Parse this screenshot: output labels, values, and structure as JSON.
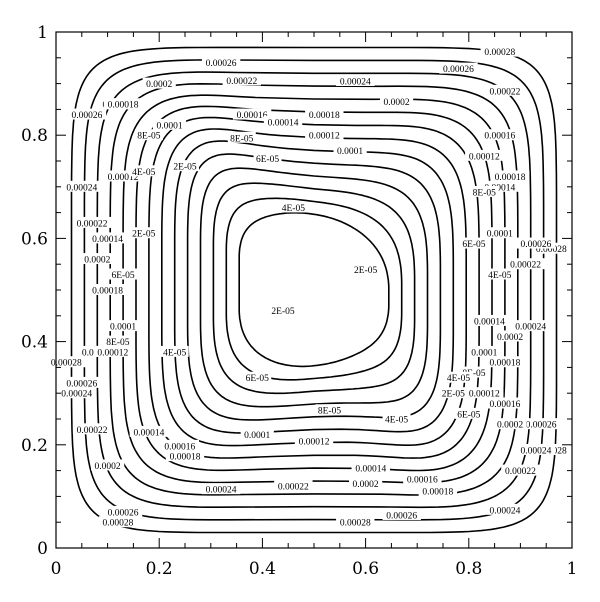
{
  "chart_data": {
    "type": "contour",
    "title": "",
    "xlabel": "",
    "ylabel": "",
    "xlim": [
      0,
      1
    ],
    "ylim": [
      0,
      1
    ],
    "x_ticks": [
      "0",
      "0.2",
      "0.4",
      "0.6",
      "0.8",
      "1"
    ],
    "y_ticks": [
      "0",
      "0.2",
      "0.4",
      "0.6",
      "0.8",
      "1"
    ],
    "x_minor_step": 0.05,
    "y_minor_step": 0.05,
    "grid": false,
    "levels": [
      {
        "value": 0.00028,
        "label": "0.00028",
        "margin": 0.03,
        "label_points": [
          [
            0.86,
            0.962
          ],
          [
            0.12,
            0.86
          ],
          [
            0.02,
            0.36
          ],
          [
            0.12,
            0.05
          ],
          [
            0.58,
            0.05
          ],
          [
            0.96,
            0.58
          ],
          [
            0.96,
            0.19
          ]
        ]
      },
      {
        "value": 0.00026,
        "label": "0.00026",
        "margin": 0.055,
        "label_points": [
          [
            0.32,
            0.941
          ],
          [
            0.78,
            0.929
          ],
          [
            0.06,
            0.84
          ],
          [
            0.05,
            0.32
          ],
          [
            0.13,
            0.07
          ],
          [
            0.67,
            0.064
          ],
          [
            0.93,
            0.59
          ],
          [
            0.94,
            0.24
          ]
        ]
      },
      {
        "value": 0.00024,
        "label": "0.00024",
        "margin": 0.08,
        "label_points": [
          [
            0.58,
            0.905
          ],
          [
            0.05,
            0.7
          ],
          [
            0.04,
            0.3
          ],
          [
            0.32,
            0.114
          ],
          [
            0.87,
            0.074
          ],
          [
            0.92,
            0.43
          ],
          [
            0.93,
            0.19
          ]
        ]
      },
      {
        "value": 0.00022,
        "label": "0.00022",
        "margin": 0.105,
        "label_points": [
          [
            0.36,
            0.906
          ],
          [
            0.87,
            0.886
          ],
          [
            0.07,
            0.63
          ],
          [
            0.07,
            0.23
          ],
          [
            0.46,
            0.12
          ],
          [
            0.91,
            0.55
          ],
          [
            0.9,
            0.15
          ]
        ]
      },
      {
        "value": 0.0002,
        "label": "0.0002",
        "margin": 0.13,
        "label_points": [
          [
            0.2,
            0.9
          ],
          [
            0.66,
            0.865
          ],
          [
            0.08,
            0.56
          ],
          [
            0.1,
            0.16
          ],
          [
            0.6,
            0.125
          ],
          [
            0.88,
            0.41
          ],
          [
            0.88,
            0.24
          ]
        ]
      },
      {
        "value": 0.00018,
        "label": "0.00018",
        "margin": 0.155,
        "label_points": [
          [
            0.13,
            0.86
          ],
          [
            0.52,
            0.84
          ],
          [
            0.1,
            0.5
          ],
          [
            0.25,
            0.178
          ],
          [
            0.74,
            0.11
          ],
          [
            0.87,
            0.36
          ],
          [
            0.88,
            0.72
          ]
        ]
      },
      {
        "value": 0.00016,
        "label": "0.00016",
        "margin": 0.18,
        "label_points": [
          [
            0.38,
            0.84
          ],
          [
            0.08,
            0.38
          ],
          [
            0.24,
            0.198
          ],
          [
            0.71,
            0.134
          ],
          [
            0.86,
            0.8
          ],
          [
            0.87,
            0.28
          ]
        ]
      },
      {
        "value": 0.00014,
        "label": "0.00014",
        "margin": 0.205,
        "label_points": [
          [
            0.44,
            0.826
          ],
          [
            0.1,
            0.6
          ],
          [
            0.18,
            0.225
          ],
          [
            0.61,
            0.155
          ],
          [
            0.86,
            0.7
          ],
          [
            0.84,
            0.44
          ]
        ]
      },
      {
        "value": 0.00012,
        "label": "0.00012",
        "margin": 0.23,
        "label_points": [
          [
            0.52,
            0.8
          ],
          [
            0.13,
            0.72
          ],
          [
            0.11,
            0.38
          ],
          [
            0.5,
            0.207
          ],
          [
            0.83,
            0.76
          ],
          [
            0.83,
            0.3
          ]
        ]
      },
      {
        "value": 0.0001,
        "label": "0.0001",
        "margin": 0.255,
        "label_points": [
          [
            0.22,
            0.82
          ],
          [
            0.57,
            0.77
          ],
          [
            0.13,
            0.43
          ],
          [
            0.39,
            0.22
          ],
          [
            0.86,
            0.61
          ],
          [
            0.83,
            0.38
          ]
        ]
      },
      {
        "value": 8e-05,
        "label": "8E-05",
        "margin": 0.28,
        "label_points": [
          [
            0.18,
            0.8
          ],
          [
            0.36,
            0.795
          ],
          [
            0.12,
            0.4
          ],
          [
            0.53,
            0.267
          ],
          [
            0.83,
            0.69
          ],
          [
            0.81,
            0.34
          ]
        ]
      },
      {
        "value": 6e-05,
        "label": "6E-05",
        "margin": 0.305,
        "label_points": [
          [
            0.41,
            0.755
          ],
          [
            0.13,
            0.53
          ],
          [
            0.39,
            0.33
          ],
          [
            0.81,
            0.59
          ],
          [
            0.8,
            0.26
          ]
        ]
      },
      {
        "value": 4e-05,
        "label": "4E-05",
        "margin": 0.33,
        "label_points": [
          [
            0.17,
            0.73
          ],
          [
            0.46,
            0.66
          ],
          [
            0.23,
            0.38
          ],
          [
            0.66,
            0.25
          ],
          [
            0.86,
            0.53
          ],
          [
            0.78,
            0.33
          ]
        ]
      },
      {
        "value": 2e-05,
        "label": "2E-05",
        "margin": 0.355,
        "label_points": [
          [
            0.25,
            0.74
          ],
          [
            0.17,
            0.61
          ],
          [
            0.6,
            0.54
          ],
          [
            0.44,
            0.46
          ],
          [
            0.77,
            0.3
          ]
        ]
      }
    ]
  }
}
